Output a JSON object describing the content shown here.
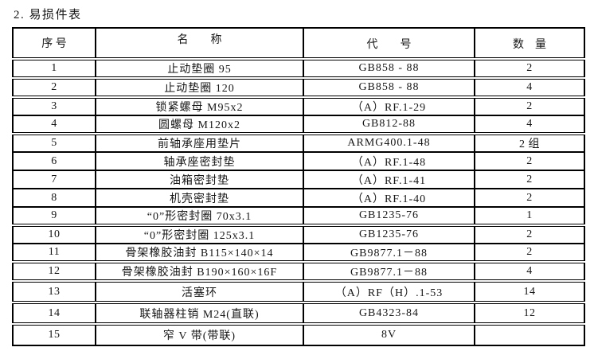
{
  "title": "2. 易损件表",
  "table": {
    "headers": [
      "序 号",
      "名　　称",
      "代　　号",
      "数　量"
    ],
    "rows": [
      {
        "no": "1",
        "name": "止动垫圈 95",
        "code": "GB858 - 88",
        "qty": "2"
      },
      {
        "no": "2",
        "name": "止动垫圈 120",
        "code": "GB858 - 88",
        "qty": "4"
      },
      {
        "no": "3",
        "name": "锁紧螺母 M95x2",
        "code": "（A）RF.1-29",
        "qty": "2"
      },
      {
        "no": "4",
        "name": "圆螺母 M120x2",
        "code": "GB812-88",
        "qty": "4"
      },
      {
        "no": "5",
        "name": "前轴承座用垫片",
        "code": "ARMG400.1-48",
        "qty": "2 组"
      },
      {
        "no": "6",
        "name": "轴承座密封垫",
        "code": "（A）RF.1-48",
        "qty": "2"
      },
      {
        "no": "7",
        "name": "油箱密封垫",
        "code": "（A）RF.1-41",
        "qty": "2"
      },
      {
        "no": "8",
        "name": "机壳密封垫",
        "code": "（A）RF.1-40",
        "qty": "2"
      },
      {
        "no": "9",
        "name": "“0”形密封圈 70x3.1",
        "code": "GB1235-76",
        "qty": "1"
      },
      {
        "no": "10",
        "name": "“0”形密封圈 125x3.1",
        "code": "GB1235-76",
        "qty": "2"
      },
      {
        "no": "11",
        "name": "骨架橡胶油封 B115×140×14",
        "code": "GB9877.1－88",
        "qty": "2"
      },
      {
        "no": "12",
        "name": "骨架橡胶油封 B190×160×16F",
        "code": "GB9877.1－88",
        "qty": "4"
      },
      {
        "no": "13",
        "name": "活塞环",
        "code": "（A）RF（H）.1-53",
        "qty": "14"
      },
      {
        "no": "14",
        "name": "联轴器柱销 M24(直联)",
        "code": "GB4323-84",
        "qty": "12"
      },
      {
        "no": "15",
        "name": "窄 V 带(带联)",
        "code": "8V",
        "qty": ""
      }
    ]
  }
}
